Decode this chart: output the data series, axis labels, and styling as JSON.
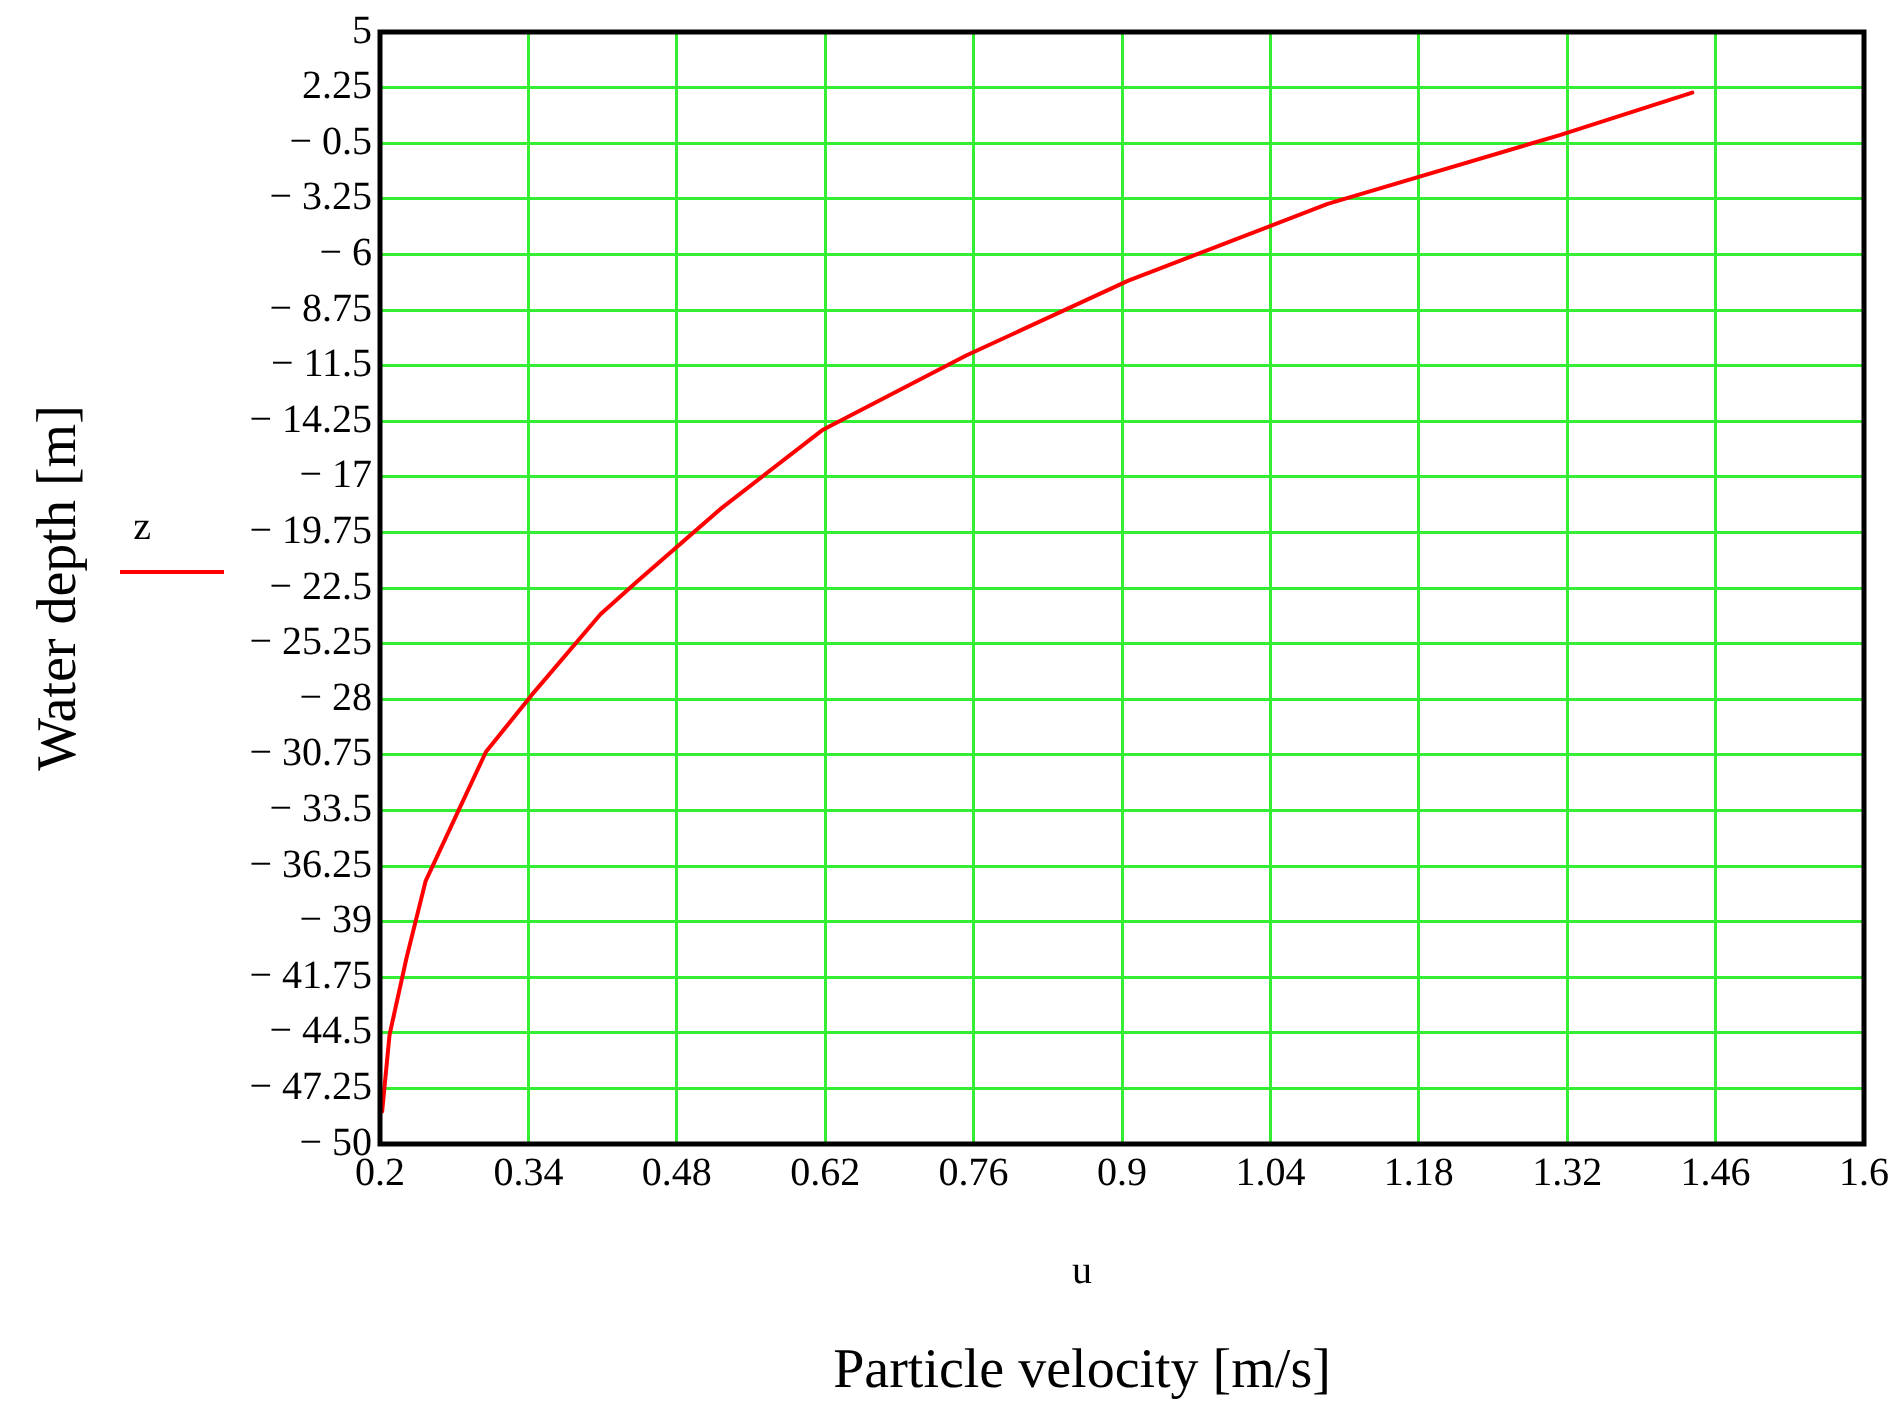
{
  "chart_data": {
    "type": "line",
    "xlabel": "Particle velocity [m/s]",
    "ylabel": "Water depth [m]",
    "annotations": [
      "u"
    ],
    "xlim": [
      0.2,
      1.6
    ],
    "xticks": [
      0.2,
      0.34,
      0.48,
      0.62,
      0.76,
      0.9,
      1.04,
      1.18,
      1.32,
      1.46,
      1.6
    ],
    "ylim": [
      -50,
      5
    ],
    "yticks": [
      5,
      2.25,
      {
        "value": -0.5,
        "label": "− 0.5"
      },
      {
        "value": -3.25,
        "label": "− 3.25"
      },
      {
        "value": -6,
        "label": "− 6"
      },
      {
        "value": -8.75,
        "label": "− 8.75"
      },
      {
        "value": -11.5,
        "label": "− 11.5"
      },
      {
        "value": -14.25,
        "label": "− 14.25"
      },
      {
        "value": -17,
        "label": "− 17"
      },
      {
        "value": -19.75,
        "label": "− 19.75"
      },
      {
        "value": -22.5,
        "label": "− 22.5"
      },
      {
        "value": -25.25,
        "label": "− 25.25"
      },
      {
        "value": -28,
        "label": "− 28"
      },
      {
        "value": -30.75,
        "label": "− 30.75"
      },
      {
        "value": -33.5,
        "label": "− 33.5"
      },
      {
        "value": -36.25,
        "label": "− 36.25"
      },
      {
        "value": -39,
        "label": "− 39"
      },
      {
        "value": -41.75,
        "label": "− 41.75"
      },
      {
        "value": -44.5,
        "label": "− 44.5"
      },
      {
        "value": -47.25,
        "label": "− 47.25"
      },
      {
        "value": -50,
        "label": "− 50"
      }
    ],
    "grid": true,
    "legend": "left",
    "marker": "none",
    "line_style": "solid",
    "series": [
      {
        "name": "z",
        "color": "#ff0000",
        "x": [
          0.202,
          0.209,
          0.225,
          0.243,
          0.275,
          0.3,
          0.343,
          0.408,
          0.442,
          0.521,
          0.617,
          0.753,
          0.906,
          1.094,
          1.313,
          1.438
        ],
        "values": [
          -48.4,
          -44.6,
          -40.8,
          -37.0,
          -33.4,
          -30.6,
          -27.8,
          -23.8,
          -22.2,
          -18.6,
          -14.7,
          -11.0,
          -7.3,
          -3.5,
          -0.1,
          2.0
        ]
      }
    ]
  }
}
